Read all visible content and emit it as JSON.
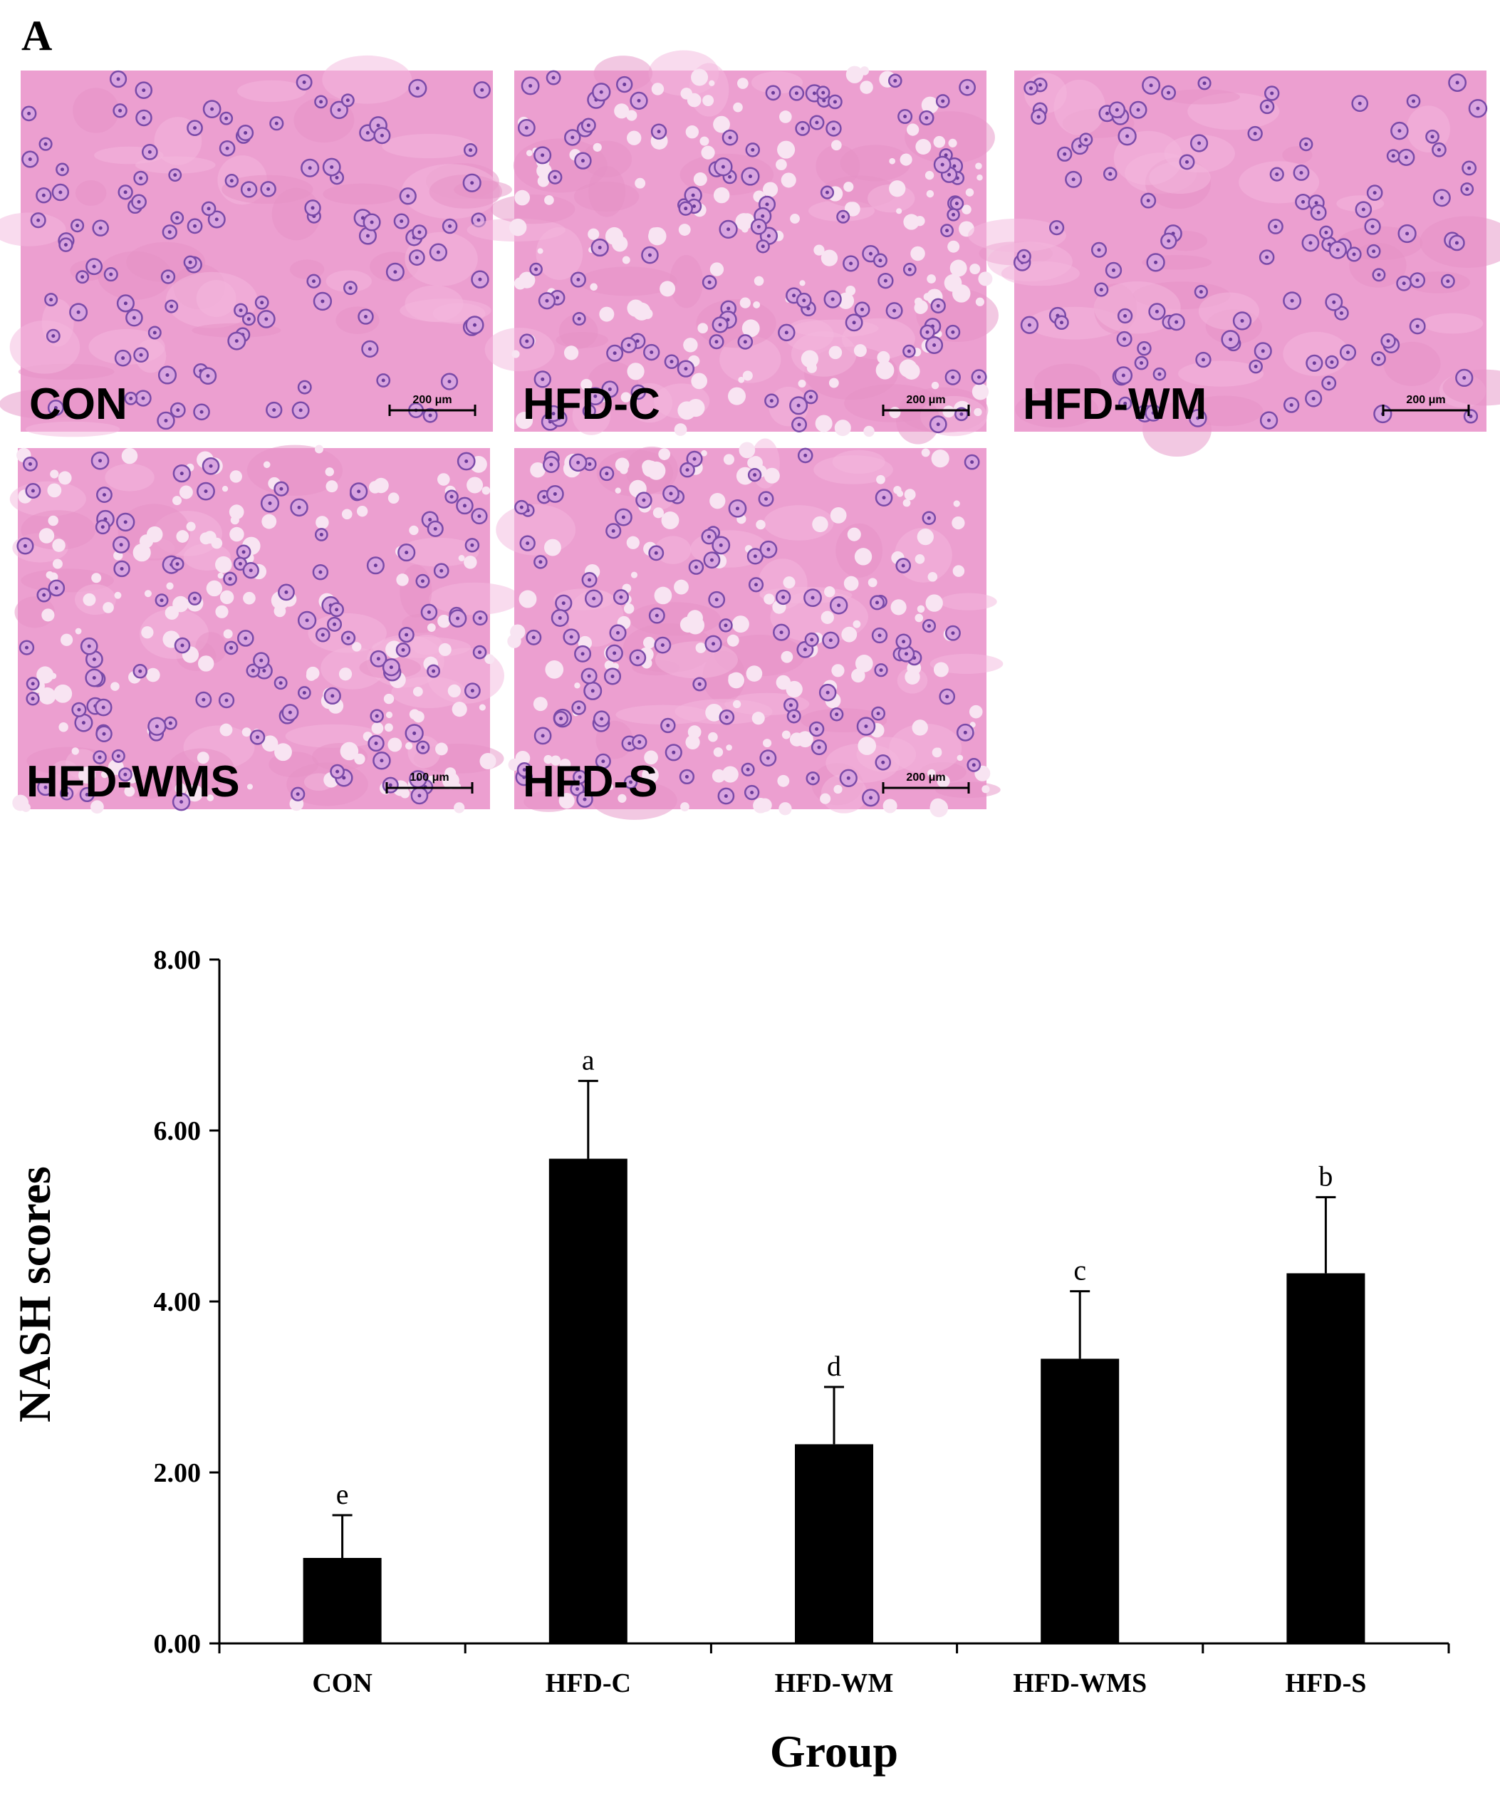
{
  "panel_label": "A",
  "micrographs": [
    {
      "label": "CON",
      "scale_bar": "200 μm"
    },
    {
      "label": "HFD-C",
      "scale_bar": "200 μm"
    },
    {
      "label": "HFD-WM",
      "scale_bar": "200 μm"
    },
    {
      "label": "HFD-WMS",
      "scale_bar": "100 μm"
    },
    {
      "label": "HFD-S",
      "scale_bar": "200 μm"
    }
  ],
  "chart_data": {
    "type": "bar",
    "x_label": "Group",
    "y_label": "NASH scores",
    "categories": [
      "CON",
      "HFD-C",
      "HFD-WM",
      "HFD-WMS",
      "HFD-S"
    ],
    "values": [
      1.0,
      5.67,
      2.33,
      3.33,
      4.33
    ],
    "errors": [
      0.5,
      0.91,
      0.67,
      0.79,
      0.89
    ],
    "significance": [
      "e",
      "a",
      "d",
      "c",
      "b"
    ],
    "color": "#000000",
    "ylim": [
      0,
      8
    ],
    "yticks": [
      {
        "value": 0,
        "label": "0.00"
      },
      {
        "value": 2,
        "label": "2.00"
      },
      {
        "value": 4,
        "label": "4.00"
      },
      {
        "value": 6,
        "label": "6.00"
      },
      {
        "value": 8,
        "label": "8.00"
      }
    ]
  }
}
